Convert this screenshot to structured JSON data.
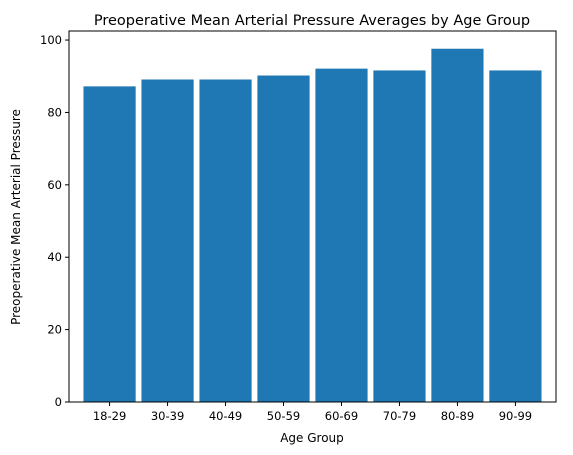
{
  "chart_data": {
    "type": "bar",
    "title": "Preoperative Mean Arterial Pressure Averages by Age Group",
    "xlabel": "Age Group",
    "ylabel": "Preoperative Mean Arterial Pressure",
    "categories": [
      "18-29",
      "30-39",
      "40-49",
      "50-59",
      "60-69",
      "70-79",
      "80-89",
      "90-99"
    ],
    "values": [
      87.2,
      89.1,
      89.1,
      90.2,
      92.1,
      91.6,
      97.6,
      91.6
    ],
    "ylim": [
      0,
      102.5
    ],
    "yticks": [
      0,
      20,
      40,
      60,
      80,
      100
    ],
    "grid": false,
    "bar_color": "#1f77b4"
  }
}
